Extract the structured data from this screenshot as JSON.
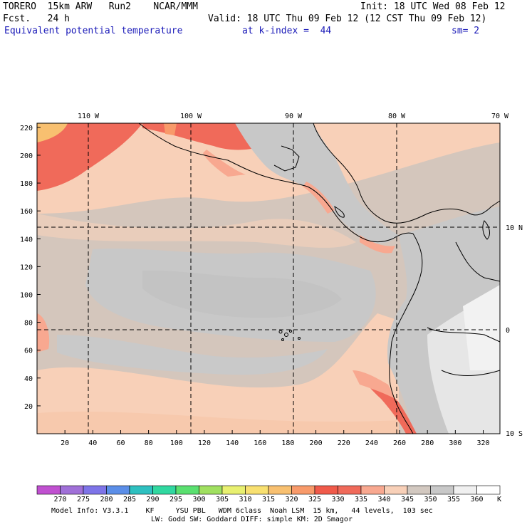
{
  "header": {
    "model": "TORERO  15km ARW   Run2    NCAR/MMM",
    "init": "Init: 18 UTC Wed 08 Feb 12",
    "fcst": "Fcst.   24 h",
    "valid": "Valid: 18 UTC Thu 09 Feb 12 (12 CST Thu 09 Feb 12)",
    "field": "Equivalent potential temperature",
    "level": "at k-index =  44",
    "smooth": "sm= 2"
  },
  "map": {
    "top_lon_labels": [
      "110 W",
      "100 W",
      "90 W",
      "80 W",
      "70 W"
    ],
    "right_lat_labels": [
      "10 N",
      "0",
      "10 S"
    ],
    "x_ticks": [
      "20",
      "40",
      "60",
      "80",
      "100",
      "120",
      "140",
      "160",
      "180",
      "200",
      "220",
      "240",
      "260",
      "280",
      "300",
      "320"
    ],
    "y_ticks": [
      "20",
      "40",
      "60",
      "80",
      "100",
      "120",
      "140",
      "160",
      "180",
      "200",
      "220"
    ]
  },
  "colorbar": {
    "unit": "K",
    "levels": [
      "270",
      "275",
      "280",
      "285",
      "290",
      "295",
      "300",
      "305",
      "310",
      "315",
      "320",
      "325",
      "330",
      "335",
      "340",
      "345",
      "350",
      "355",
      "360"
    ],
    "colors": [
      "#c050d0",
      "#a070d8",
      "#7e74e8",
      "#5b8ee8",
      "#2ec0c0",
      "#30d8a0",
      "#5ae070",
      "#a0e060",
      "#e8f070",
      "#f8e070",
      "#f8c070",
      "#f89a6a",
      "#f05a4a",
      "#f06a5a",
      "#f8a890",
      "#f8d0b8",
      "#d2c8c0",
      "#c8c8c8",
      "#f0f0f0",
      "#ffffff"
    ]
  },
  "footer": {
    "line1": "Model Info: V3.3.1    KF     YSU PBL   WDM 6class  Noah LSM  15 km,   44 levels,  103 sec",
    "line2": "LW: Godd SW: Goddard DIFF: simple KM: 2D Smagor"
  }
}
